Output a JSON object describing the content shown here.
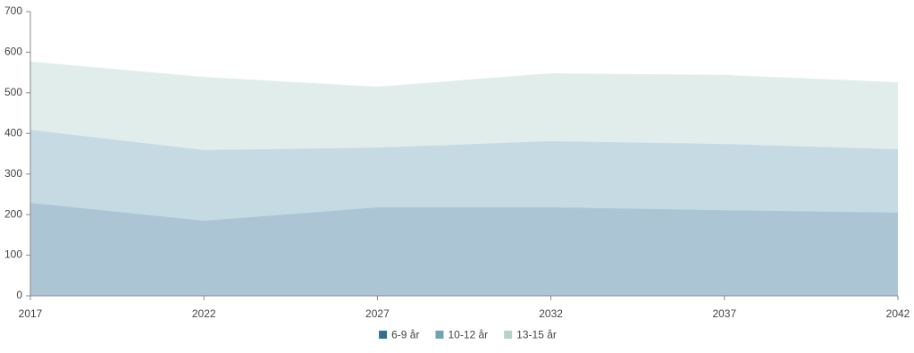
{
  "chart_data": {
    "type": "stacked_area",
    "x": [
      2017,
      2022,
      2027,
      2032,
      2037,
      2042
    ],
    "xlim": [
      2017,
      2042
    ],
    "xticks": [
      2017,
      2022,
      2027,
      2032,
      2037,
      2042
    ],
    "ylim": [
      0,
      700
    ],
    "yticks": [
      0,
      100,
      200,
      300,
      400,
      500,
      600,
      700
    ],
    "grid": false,
    "legend": "bottom",
    "fill_opacity": 0.4,
    "series": [
      {
        "name": "6-9 år",
        "color": "#2f6f93",
        "values": [
          229,
          185,
          218,
          218,
          211,
          205
        ]
      },
      {
        "name": "10-12 år",
        "color": "#6fa3b8",
        "values": [
          180,
          174,
          147,
          163,
          163,
          156
        ]
      },
      {
        "name": "13-15 år",
        "color": "#b5d3cc",
        "values": [
          168,
          180,
          150,
          167,
          170,
          165
        ]
      }
    ]
  }
}
